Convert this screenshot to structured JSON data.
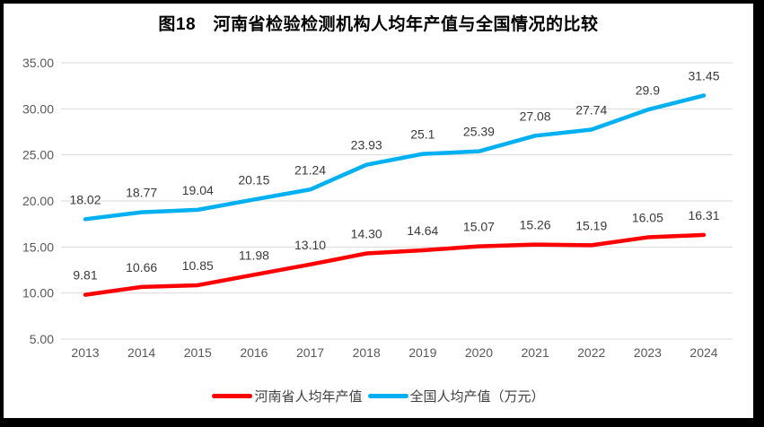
{
  "chart_data": {
    "type": "line",
    "title": "图18　河南省检验检测机构人均年产值与全国情况的比较",
    "categories": [
      "2013",
      "2014",
      "2015",
      "2016",
      "2017",
      "2018",
      "2019",
      "2020",
      "2021",
      "2022",
      "2023",
      "2024"
    ],
    "series": [
      {
        "name": "河南省人均年产值",
        "color": "#FF0000",
        "values": [
          9.81,
          10.66,
          10.85,
          11.98,
          13.1,
          14.3,
          14.64,
          15.07,
          15.26,
          15.19,
          16.05,
          16.31
        ],
        "labels": [
          "9.81",
          "10.66",
          "10.85",
          "11.98",
          "13.10",
          "14.30",
          "14.64",
          "15.07",
          "15.26",
          "15.19",
          "16.05",
          "16.31"
        ]
      },
      {
        "name": "全国人均产值（万元）",
        "color": "#00B0F0",
        "values": [
          18.02,
          18.77,
          19.04,
          20.15,
          21.24,
          23.93,
          25.1,
          25.39,
          27.08,
          27.74,
          29.9,
          31.45
        ],
        "labels": [
          "18.02",
          "18.77",
          "19.04",
          "20.15",
          "21.24",
          "23.93",
          "25.1",
          "25.39",
          "27.08",
          "27.74",
          "29.9",
          "31.45"
        ]
      }
    ],
    "y_axis": {
      "min": 5,
      "max": 35,
      "step": 5,
      "tick_labels": [
        "5.00",
        "10.00",
        "15.00",
        "20.00",
        "25.00",
        "30.00",
        "35.00"
      ]
    },
    "grid": {
      "show": true,
      "color": "#D9D9D9"
    },
    "legend_position": "bottom",
    "colors": {
      "henan_line": "#FF0000",
      "national_line": "#00B0F0",
      "axis_text": "#595959",
      "data_label_text": "#3a3a3a",
      "gridline": "#D9D9D9",
      "frame_border": "#000000"
    }
  }
}
